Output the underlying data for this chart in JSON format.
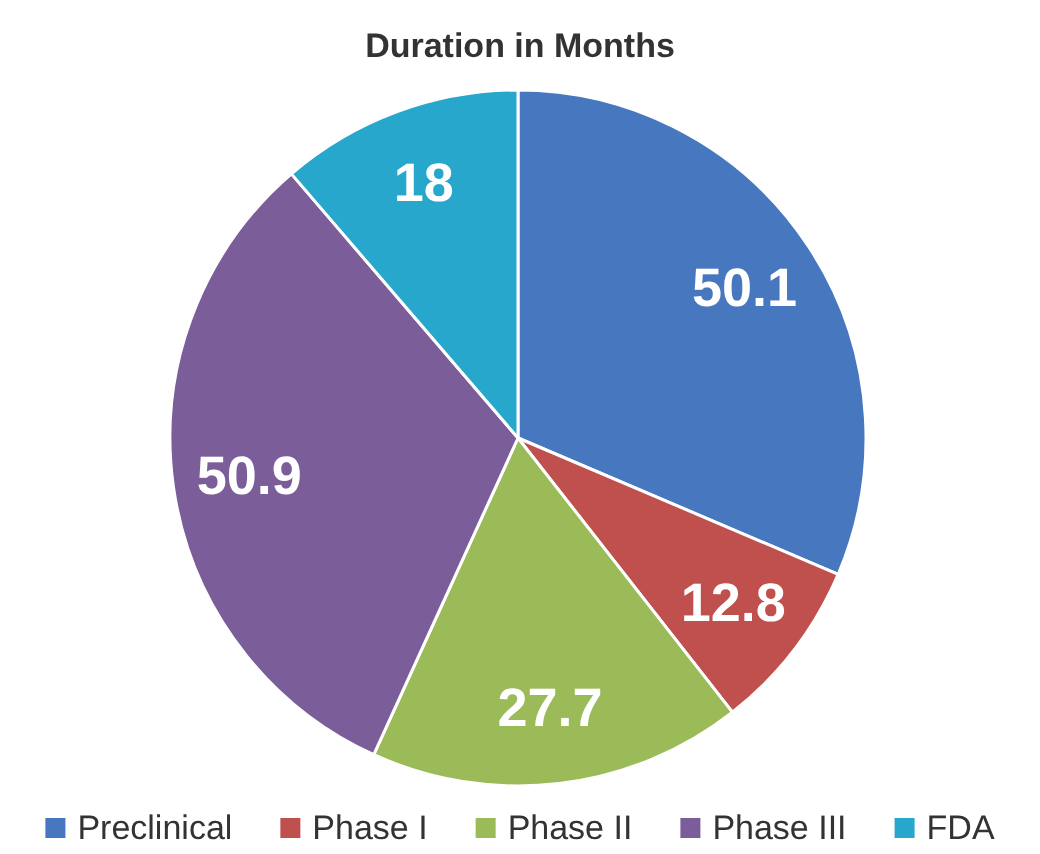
{
  "chart_data": {
    "type": "pie",
    "title": "Duration in Months",
    "categories": [
      "Preclinical",
      "Phase I",
      "Phase II",
      "Phase III",
      "FDA"
    ],
    "values": [
      50.1,
      12.8,
      27.7,
      50.9,
      18
    ],
    "colors": [
      "#4677bf",
      "#c0504d",
      "#9bbb59",
      "#7b5d9a",
      "#26a7cb"
    ],
    "data_labels": true,
    "legend": "bottom"
  }
}
